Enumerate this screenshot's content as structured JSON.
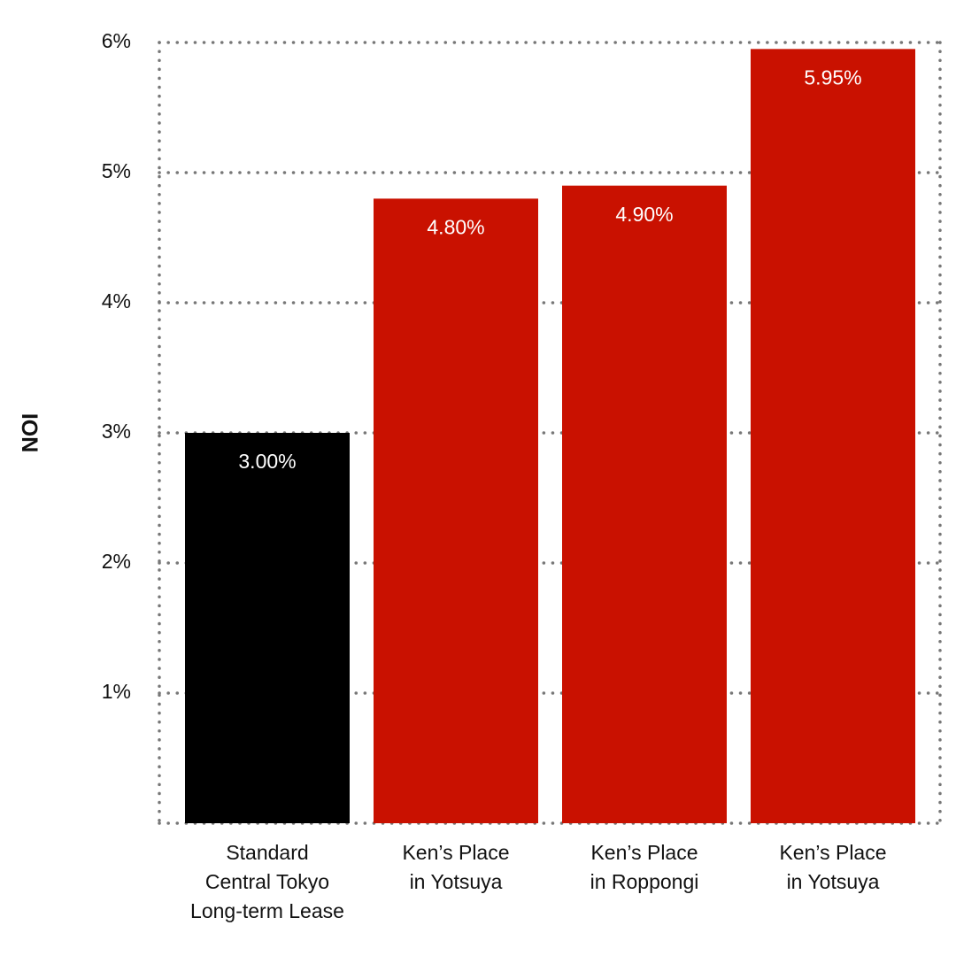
{
  "chart_data": {
    "type": "bar",
    "y_label": "NOI",
    "categories": [
      [
        "Standard",
        "Central Tokyo",
        "Long-term Lease"
      ],
      [
        "Ken’s Place",
        "in Yotsuya"
      ],
      [
        "Ken’s Place",
        "in Roppongi"
      ],
      [
        "Ken’s Place",
        "in Yotsuya"
      ]
    ],
    "values": [
      3.0,
      4.8,
      4.9,
      5.95
    ],
    "value_labels": [
      "3.00%",
      "4.80%",
      "4.90%",
      "5.95%"
    ],
    "colors": [
      "#000000",
      "#c91100",
      "#c91100",
      "#c91100"
    ],
    "ylim": [
      0,
      6
    ],
    "yticks": [
      {
        "value": 1,
        "label": "1%"
      },
      {
        "value": 2,
        "label": "2%"
      },
      {
        "value": 3,
        "label": "3%"
      },
      {
        "value": 4,
        "label": "4%"
      },
      {
        "value": 5,
        "label": "5%"
      },
      {
        "value": 6,
        "label": "6%"
      }
    ],
    "grid": true
  }
}
